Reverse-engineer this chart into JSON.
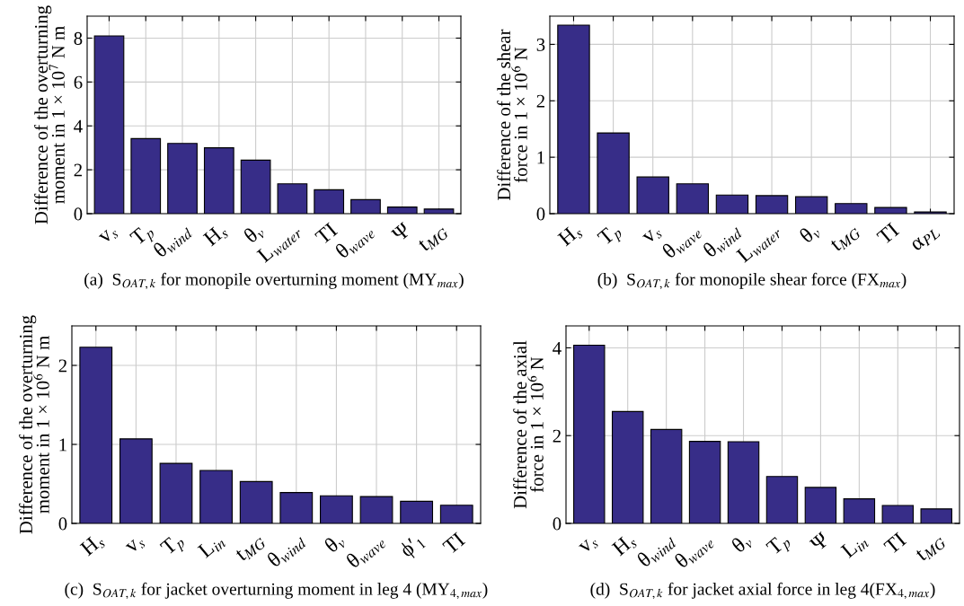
{
  "chart_data": [
    {
      "type": "bar",
      "title": "(a)  S$_{OAT,k}$ for monopile overturning moment (MY$_{max}$)",
      "ylabel": "Difference of the overturning\nmoment in 1 × 10$^{7}$ N m",
      "categories": [
        "v$_{s}$",
        "T$_{p}$",
        "θ$_{wind}$",
        "H$_{s}$",
        "θ$_{v}$",
        "L$_{water}$",
        "TI",
        "θ$_{wave}$",
        "Ψ",
        "t$_{MG}$"
      ],
      "values": [
        8.1,
        3.42,
        3.2,
        3.0,
        2.44,
        1.36,
        1.09,
        0.64,
        0.3,
        0.21
      ],
      "color": "#372d88",
      "ylim": [
        0,
        9
      ],
      "yticks": [
        0,
        2,
        4,
        6,
        8
      ],
      "grid": true
    },
    {
      "type": "bar",
      "title": "(b)  S$_{OAT,k}$ for monopile shear force (FX$_{max}$)",
      "ylabel": "Difference of the shear\nforce in 1 × 10$^{6}$ N",
      "categories": [
        "H$_{s}$",
        "T$_{p}$",
        "v$_{s}$",
        "θ$_{wave}$",
        "θ$_{wind}$",
        "L$_{water}$",
        "θ$_{v}$",
        "t$_{MG}$",
        "TI",
        "α$_{PL}$"
      ],
      "values": [
        3.34,
        1.43,
        0.65,
        0.53,
        0.33,
        0.32,
        0.3,
        0.18,
        0.11,
        0.03
      ],
      "color": "#372d88",
      "ylim": [
        0,
        3.5
      ],
      "yticks": [
        0,
        1,
        2,
        3
      ],
      "grid": true
    },
    {
      "type": "bar",
      "title": "(c)  S$_{OAT,k}$ for jacket overturning moment in leg 4 (MY$_{4,max}$)",
      "ylabel": "Difference of the overturning\nmoment in 1 × 10$^{6}$ N m",
      "categories": [
        "H$_{s}$",
        "v$_{s}$",
        "T$_{p}$",
        "L$_{in}$",
        "t$_{MG}$",
        "θ$_{wind}$",
        "θ$_{v}$",
        "θ$_{wave}$",
        "ϕ′$_{1}$",
        "TI"
      ],
      "values": [
        2.23,
        1.07,
        0.76,
        0.67,
        0.53,
        0.39,
        0.35,
        0.34,
        0.28,
        0.23
      ],
      "color": "#372d88",
      "ylim": [
        0,
        2.5
      ],
      "yticks": [
        0,
        1,
        2
      ],
      "grid": true
    },
    {
      "type": "bar",
      "title": "(d)  S$_{OAT,k}$ for jacket axial force in leg 4(FX$_{4,max}$)",
      "ylabel": "Difference of the axial\nforce in 1 × 10$^{6}$ N",
      "categories": [
        "v$_{s}$",
        "H$_{s}$",
        "θ$_{wind}$",
        "θ$_{wave}$",
        "θ$_{v}$",
        "T$_{p}$",
        "Ψ",
        "L$_{in}$",
        "TI",
        "t$_{MG}$"
      ],
      "values": [
        4.06,
        2.55,
        2.14,
        1.87,
        1.86,
        1.07,
        0.82,
        0.56,
        0.41,
        0.33
      ],
      "color": "#372d88",
      "ylim": [
        0,
        4.5
      ],
      "yticks": [
        0,
        2,
        4
      ],
      "grid": true
    }
  ]
}
